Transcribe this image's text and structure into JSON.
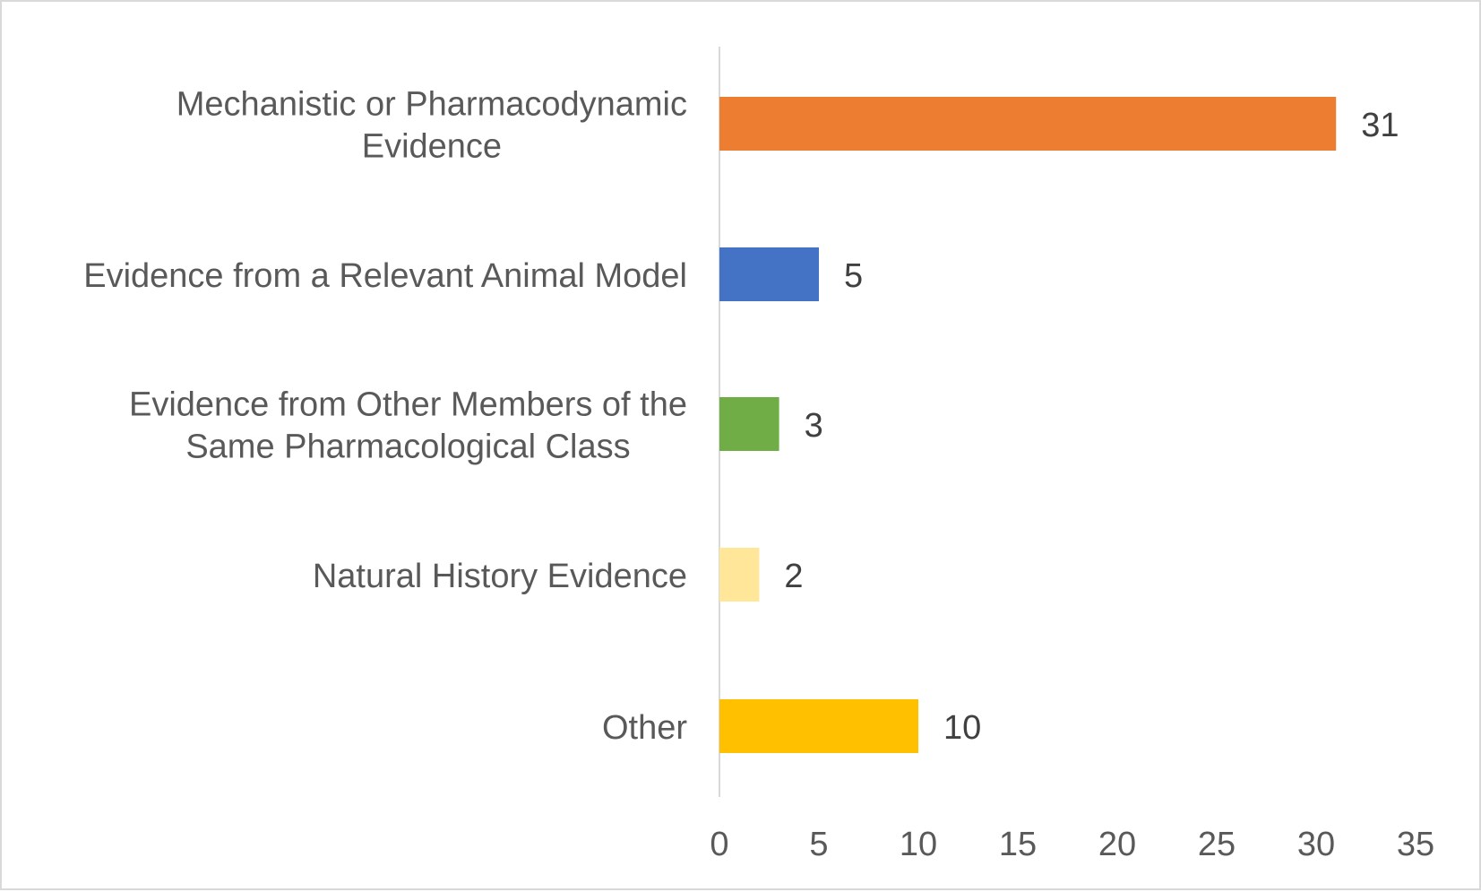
{
  "chart_data": {
    "type": "bar",
    "orientation": "horizontal",
    "categories": [
      [
        "Mechanistic or Pharmacodynamic",
        "Evidence"
      ],
      [
        "Evidence from a Relevant Animal Model"
      ],
      [
        "Evidence from Other Members of the",
        "Same Pharmacological Class"
      ],
      [
        "Natural History Evidence"
      ],
      [
        "Other"
      ]
    ],
    "values": [
      31,
      5,
      3,
      2,
      10
    ],
    "data_labels": [
      "31",
      "5",
      "3",
      "2",
      "10"
    ],
    "colors": [
      "#ED7D31",
      "#4472C4",
      "#70AD47",
      "#FFE699",
      "#FFC000"
    ],
    "x_ticks": [
      "0",
      "5",
      "10",
      "15",
      "20",
      "25",
      "30",
      "35"
    ],
    "xlim": [
      0,
      35
    ],
    "title": "",
    "xlabel": "",
    "ylabel": "",
    "grid": false,
    "legend": "none"
  }
}
